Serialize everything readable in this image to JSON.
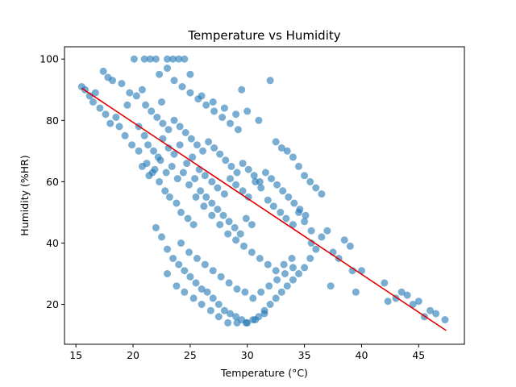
{
  "chart_data": {
    "type": "scatter",
    "title": "Temperature vs Humidity",
    "xlabel": "Temperature (°C)",
    "ylabel": "Humidity (%HR)",
    "xlim": [
      14.0,
      49.0
    ],
    "ylim": [
      7.0,
      104.0
    ],
    "x_ticks": [
      15,
      20,
      25,
      30,
      35,
      40,
      45
    ],
    "y_ticks": [
      20,
      40,
      60,
      80,
      100
    ],
    "grid": false,
    "point_color": "#1f77b4",
    "trend_color": "#e00000",
    "trendline": {
      "x": [
        15.5,
        47.4
      ],
      "y": [
        90.5,
        11.5
      ]
    },
    "series": [
      {
        "points": [
          [
            15.5,
            91
          ],
          [
            15.8,
            90
          ],
          [
            16.2,
            88
          ],
          [
            16.5,
            86
          ],
          [
            16.7,
            89
          ],
          [
            17.1,
            84
          ],
          [
            17.4,
            96
          ],
          [
            17.6,
            82
          ],
          [
            17.8,
            94
          ],
          [
            18.0,
            79
          ],
          [
            18.2,
            93
          ],
          [
            18.5,
            81
          ],
          [
            18.8,
            78
          ],
          [
            19.0,
            92
          ],
          [
            19.3,
            75
          ],
          [
            19.5,
            85
          ],
          [
            19.7,
            89
          ],
          [
            19.9,
            72
          ],
          [
            20.1,
            100
          ],
          [
            20.3,
            88
          ],
          [
            20.5,
            70
          ],
          [
            20.8,
            90
          ],
          [
            21.0,
            100
          ],
          [
            21.2,
            66
          ],
          [
            21.5,
            100
          ],
          [
            21.7,
            63
          ],
          [
            22.0,
            100
          ],
          [
            22.3,
            60
          ],
          [
            22.5,
            86
          ],
          [
            22.8,
            57
          ],
          [
            23.0,
            100
          ],
          [
            23.2,
            55
          ],
          [
            23.5,
            100
          ],
          [
            23.8,
            53
          ],
          [
            24.0,
            100
          ],
          [
            24.2,
            50
          ],
          [
            24.5,
            100
          ],
          [
            24.8,
            48
          ],
          [
            25.0,
            95
          ],
          [
            25.3,
            46
          ],
          [
            20.5,
            78
          ],
          [
            21.0,
            75
          ],
          [
            21.3,
            72
          ],
          [
            21.8,
            70
          ],
          [
            22.2,
            68
          ],
          [
            22.6,
            74
          ],
          [
            23.1,
            71
          ],
          [
            23.6,
            69
          ],
          [
            24.1,
            72
          ],
          [
            24.7,
            66
          ],
          [
            25.2,
            68
          ],
          [
            25.8,
            64
          ],
          [
            26.3,
            62
          ],
          [
            26.9,
            60
          ],
          [
            27.4,
            58
          ],
          [
            28.0,
            56
          ],
          [
            28.5,
            61
          ],
          [
            29.0,
            59
          ],
          [
            29.6,
            57
          ],
          [
            30.1,
            55
          ],
          [
            30.7,
            60
          ],
          [
            31.2,
            58
          ],
          [
            31.8,
            54
          ],
          [
            32.3,
            52
          ],
          [
            32.9,
            50
          ],
          [
            33.4,
            48
          ],
          [
            34.0,
            46
          ],
          [
            34.5,
            50
          ],
          [
            35.0,
            47
          ],
          [
            35.6,
            44
          ],
          [
            20.8,
            65
          ],
          [
            21.4,
            62
          ],
          [
            21.9,
            64
          ],
          [
            22.4,
            67
          ],
          [
            22.9,
            63
          ],
          [
            23.4,
            65
          ],
          [
            23.9,
            61
          ],
          [
            24.4,
            63
          ],
          [
            24.9,
            59
          ],
          [
            25.4,
            61
          ],
          [
            25.9,
            57
          ],
          [
            26.4,
            55
          ],
          [
            26.9,
            53
          ],
          [
            27.4,
            51
          ],
          [
            27.9,
            49
          ],
          [
            28.4,
            47
          ],
          [
            28.9,
            45
          ],
          [
            29.4,
            43
          ],
          [
            29.9,
            48
          ],
          [
            30.4,
            46
          ],
          [
            21.1,
            85
          ],
          [
            21.6,
            83
          ],
          [
            22.1,
            81
          ],
          [
            22.6,
            79
          ],
          [
            23.1,
            77
          ],
          [
            23.6,
            80
          ],
          [
            24.1,
            78
          ],
          [
            24.6,
            76
          ],
          [
            25.1,
            74
          ],
          [
            25.6,
            72
          ],
          [
            26.1,
            70
          ],
          [
            26.6,
            73
          ],
          [
            27.1,
            71
          ],
          [
            27.6,
            69
          ],
          [
            28.1,
            67
          ],
          [
            28.6,
            65
          ],
          [
            29.1,
            63
          ],
          [
            29.6,
            66
          ],
          [
            30.1,
            64
          ],
          [
            30.6,
            62
          ],
          [
            31.1,
            60
          ],
          [
            31.6,
            63
          ],
          [
            32.1,
            61
          ],
          [
            32.6,
            59
          ],
          [
            33.1,
            57
          ],
          [
            33.6,
            55
          ],
          [
            34.1,
            53
          ],
          [
            34.6,
            51
          ],
          [
            35.1,
            49
          ],
          [
            35.6,
            40
          ],
          [
            22.0,
            45
          ],
          [
            22.5,
            42
          ],
          [
            23.0,
            38
          ],
          [
            23.5,
            35
          ],
          [
            24.0,
            33
          ],
          [
            24.5,
            31
          ],
          [
            25.0,
            29
          ],
          [
            25.5,
            27
          ],
          [
            26.0,
            25
          ],
          [
            26.5,
            24
          ],
          [
            27.0,
            22
          ],
          [
            27.5,
            20
          ],
          [
            28.0,
            18
          ],
          [
            28.5,
            17
          ],
          [
            29.0,
            16
          ],
          [
            29.5,
            15
          ],
          [
            30.0,
            14
          ],
          [
            30.5,
            15
          ],
          [
            31.0,
            16
          ],
          [
            31.5,
            18
          ],
          [
            32.0,
            20
          ],
          [
            32.5,
            22
          ],
          [
            33.0,
            24
          ],
          [
            33.5,
            26
          ],
          [
            34.0,
            28
          ],
          [
            34.5,
            30
          ],
          [
            35.0,
            32
          ],
          [
            23.0,
            30
          ],
          [
            23.8,
            26
          ],
          [
            24.5,
            24
          ],
          [
            25.3,
            22
          ],
          [
            26.0,
            20
          ],
          [
            26.8,
            18
          ],
          [
            27.5,
            16
          ],
          [
            28.3,
            14
          ],
          [
            29.1,
            14
          ],
          [
            29.9,
            14
          ],
          [
            30.7,
            15
          ],
          [
            31.5,
            17
          ],
          [
            24.2,
            40
          ],
          [
            24.9,
            37
          ],
          [
            25.6,
            35
          ],
          [
            26.3,
            33
          ],
          [
            27.0,
            31
          ],
          [
            27.7,
            29
          ],
          [
            28.4,
            27
          ],
          [
            29.1,
            25
          ],
          [
            29.8,
            24
          ],
          [
            30.5,
            22
          ],
          [
            31.2,
            24
          ],
          [
            31.9,
            26
          ],
          [
            32.6,
            28
          ],
          [
            33.3,
            30
          ],
          [
            34.0,
            32
          ],
          [
            35.5,
            35
          ],
          [
            36.0,
            38
          ],
          [
            36.5,
            42
          ],
          [
            37.0,
            44
          ],
          [
            37.3,
            26
          ],
          [
            37.5,
            37
          ],
          [
            38.0,
            35
          ],
          [
            38.5,
            41
          ],
          [
            39.0,
            39
          ],
          [
            39.2,
            31
          ],
          [
            39.5,
            24
          ],
          [
            40.0,
            31
          ],
          [
            42.0,
            27
          ],
          [
            42.3,
            21
          ],
          [
            43.0,
            22
          ],
          [
            43.5,
            24
          ],
          [
            44.0,
            23
          ],
          [
            44.5,
            20
          ],
          [
            45.0,
            21
          ],
          [
            45.5,
            16
          ],
          [
            46.0,
            18
          ],
          [
            46.5,
            17
          ],
          [
            47.3,
            15
          ],
          [
            26.0,
            88
          ],
          [
            27.0,
            86
          ],
          [
            28.0,
            84
          ],
          [
            29.0,
            82
          ],
          [
            29.5,
            90
          ],
          [
            30.0,
            83
          ],
          [
            31.0,
            80
          ],
          [
            32.0,
            93
          ],
          [
            32.5,
            73
          ],
          [
            33.0,
            71
          ],
          [
            33.5,
            70
          ],
          [
            34.0,
            68
          ],
          [
            34.5,
            65
          ],
          [
            35.0,
            62
          ],
          [
            35.5,
            60
          ],
          [
            36.0,
            58
          ],
          [
            36.5,
            56
          ],
          [
            25.5,
            55
          ],
          [
            26.2,
            52
          ],
          [
            26.9,
            49
          ],
          [
            27.6,
            46
          ],
          [
            28.3,
            43
          ],
          [
            29.0,
            41
          ],
          [
            29.7,
            39
          ],
          [
            30.4,
            37
          ],
          [
            31.1,
            35
          ],
          [
            31.8,
            33
          ],
          [
            32.5,
            31
          ],
          [
            33.2,
            33
          ],
          [
            33.9,
            35
          ],
          [
            22.3,
            95
          ],
          [
            23.0,
            97
          ],
          [
            23.6,
            93
          ],
          [
            24.3,
            91
          ],
          [
            25.0,
            89
          ],
          [
            25.7,
            87
          ],
          [
            26.4,
            85
          ],
          [
            27.1,
            83
          ],
          [
            27.8,
            81
          ],
          [
            28.5,
            79
          ],
          [
            29.2,
            77
          ]
        ]
      }
    ]
  }
}
